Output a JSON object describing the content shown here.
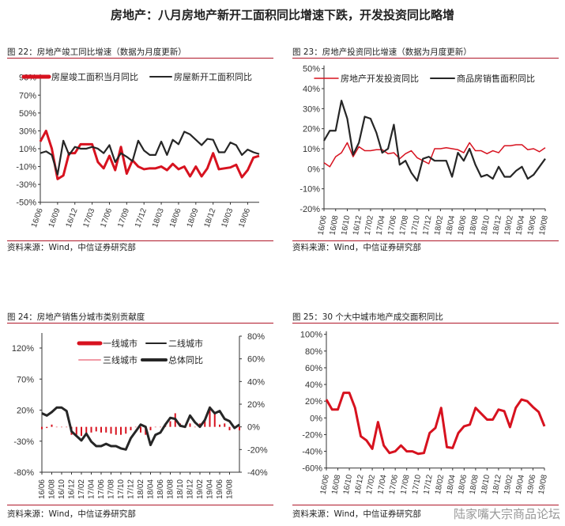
{
  "title": "房地产：八月房地产新开工面积同比增速下跌，开发投资同比略增",
  "source": "资料来源：Wind，中信证券研究部",
  "watermark": "陆家嘴大宗商品论坛",
  "colors": {
    "red": "#d7121f",
    "black": "#262626",
    "pink": "#f19aa6",
    "rule": "#b0182a"
  },
  "chart_data": [
    {
      "type": "line",
      "title": "图 22：房地产竣工同比增速（数据为月度更新）",
      "ylim": [
        -50,
        90
      ],
      "yticks": [
        "90%",
        "70%",
        "50%",
        "30%",
        "10%",
        "-10%",
        "-30%",
        "-50%"
      ],
      "xtick_labels": [
        "16/06",
        "16/09",
        "16/12",
        "17/03",
        "17/06",
        "17/09",
        "17/12",
        "18/03",
        "18/06",
        "18/09",
        "18/12",
        "19/03",
        "19/06"
      ],
      "x_start": "16/06",
      "x_end": "19/08",
      "series": [
        {
          "name": "房屋竣工面积当月同比",
          "color": "#d7121f",
          "values": [
            18,
            30,
            10,
            -24,
            -20,
            5,
            5,
            15,
            15,
            15,
            -5,
            -12,
            2,
            -14,
            12,
            -18,
            -3,
            -10,
            -13,
            -12,
            -12,
            -10,
            -14,
            -7,
            -13,
            -10,
            -21,
            -10,
            -21,
            -12,
            5,
            -13,
            -12,
            -11,
            -8,
            -22,
            -14,
            0,
            2
          ]
        },
        {
          "name": "房屋新开工面积同比",
          "color": "#262626",
          "values": [
            5,
            7,
            3,
            -19,
            19,
            3,
            12,
            10,
            10,
            12,
            10,
            5,
            14,
            -5,
            5,
            1,
            -4,
            19,
            8,
            3,
            3,
            18,
            3,
            20,
            15,
            29,
            26,
            20,
            14,
            21,
            20,
            6,
            6,
            17,
            14,
            3,
            9,
            6,
            4
          ]
        }
      ]
    },
    {
      "type": "line",
      "title": "图 23：房地产投资同比增速（数据为月度更新）",
      "ylim": [
        -20,
        50
      ],
      "yticks": [
        "50%",
        "40%",
        "30%",
        "20%",
        "10%",
        "0%",
        "-10%",
        "-20%"
      ],
      "xtick_labels": [
        "16/06",
        "16/08",
        "16/10",
        "16/12",
        "17/02",
        "17/04",
        "17/06",
        "17/08",
        "17/10",
        "17/12",
        "18/02",
        "18/04",
        "18/06",
        "18/08",
        "18/10",
        "18/12",
        "19/02",
        "19/04",
        "19/06",
        "19/08"
      ],
      "x_start": "16/06",
      "x_end": "19/08",
      "series": [
        {
          "name": "房地产开发投资同比",
          "color": "#d7121f",
          "values": [
            3,
            1,
            6,
            8,
            13,
            6,
            11,
            9,
            9,
            9.5,
            9.5,
            7.5,
            8,
            5,
            7.5,
            9,
            5.5,
            4,
            2.5,
            10,
            10,
            10.5,
            10,
            9.5,
            8,
            13,
            9,
            9,
            7.5,
            9,
            8,
            11.5,
            11.5,
            12,
            12,
            9.5,
            10,
            8.5,
            10.5
          ]
        },
        {
          "name": "商品房销售面积同比",
          "color": "#262626",
          "values": [
            14,
            19,
            19,
            34,
            25,
            7,
            13,
            26,
            25,
            18,
            8,
            10,
            22,
            2,
            4,
            -2,
            -6,
            5,
            6,
            4,
            4,
            4,
            -4,
            8,
            4,
            10,
            2,
            -4,
            -3,
            -5,
            1,
            -4,
            -4,
            -1,
            1,
            -5,
            -3,
            1,
            5
          ]
        }
      ]
    },
    {
      "type": "bar+line",
      "title": "图 24：房地产销售分城市类别贡献度",
      "ylim_left": [
        -80,
        120
      ],
      "yticks_left": [
        "120%",
        "70%",
        "20%",
        "-30%",
        "-80%"
      ],
      "ylim_right": [
        -40,
        80
      ],
      "yticks_right": [
        "80%",
        "60%",
        "40%",
        "20%",
        "0%",
        "-20%",
        "-40%"
      ],
      "xtick_labels": [
        "16/06",
        "16/08",
        "16/10",
        "16/12",
        "17/02",
        "17/04",
        "17/06",
        "17/08",
        "17/10",
        "17/12",
        "18/02",
        "18/04",
        "18/06",
        "18/08",
        "18/10",
        "18/12",
        "19/02",
        "19/04",
        "19/06",
        "19/08"
      ],
      "x_start": "16/06",
      "x_end": "19/10",
      "series": [
        {
          "name": "一线城市",
          "kind": "bar",
          "color": "#d7121f",
          "values": [
            -2,
            -1,
            2,
            0,
            0,
            0,
            -7,
            -7,
            -8,
            -6,
            -5,
            -4,
            -5,
            -5,
            -6,
            -7,
            -7,
            -6,
            -3,
            0,
            -5,
            -7,
            -3,
            0,
            0,
            2,
            5,
            12,
            3,
            -1,
            3,
            0,
            3,
            5,
            18,
            12,
            2,
            3,
            -3,
            0,
            -3
          ]
        },
        {
          "name": "二线城市",
          "kind": "line",
          "color": "#262626",
          "values": []
        },
        {
          "name": "三线城市",
          "kind": "line",
          "color": "#f19aa6",
          "values": []
        },
        {
          "name": "总体同比",
          "kind": "line",
          "color": "#262626",
          "values": [
            12,
            10,
            13,
            17,
            17,
            14,
            -4,
            -8,
            -12,
            -6,
            -13,
            -17,
            -17,
            -15,
            -17,
            -17,
            -19,
            -20,
            -10,
            -4,
            2,
            0,
            -16,
            -7,
            -5,
            2,
            8,
            7,
            1,
            0,
            10,
            4,
            0,
            6,
            17,
            12,
            14,
            7,
            5,
            -1,
            2
          ]
        }
      ]
    },
    {
      "type": "line",
      "title": "图 25：30 个大中城市地产成交面积同比",
      "ylim": [
        -60,
        100
      ],
      "yticks": [
        "100%",
        "80%",
        "60%",
        "40%",
        "20%",
        "0%",
        "-20%",
        "-40%",
        "-60%"
      ],
      "xtick_labels": [
        "16/06",
        "16/08",
        "16/10",
        "16/12",
        "17/02",
        "17/04",
        "17/06",
        "17/08",
        "17/10",
        "17/12",
        "18/02",
        "18/04",
        "18/06",
        "18/08",
        "18/10",
        "18/12",
        "19/02",
        "19/04",
        "19/06",
        "19/08"
      ],
      "x_start": "16/06",
      "x_end": "19/08",
      "series": [
        {
          "color": "#d7121f",
          "values": [
            22,
            10,
            10,
            30,
            30,
            12,
            -22,
            -27,
            -37,
            -5,
            -33,
            -42,
            -40,
            -33,
            -40,
            -40,
            -43,
            -42,
            -18,
            -12,
            12,
            -35,
            -36,
            -18,
            -10,
            -8,
            12,
            5,
            -2,
            -2,
            10,
            8,
            -11,
            12,
            22,
            20,
            13,
            7,
            -10
          ]
        }
      ]
    }
  ]
}
